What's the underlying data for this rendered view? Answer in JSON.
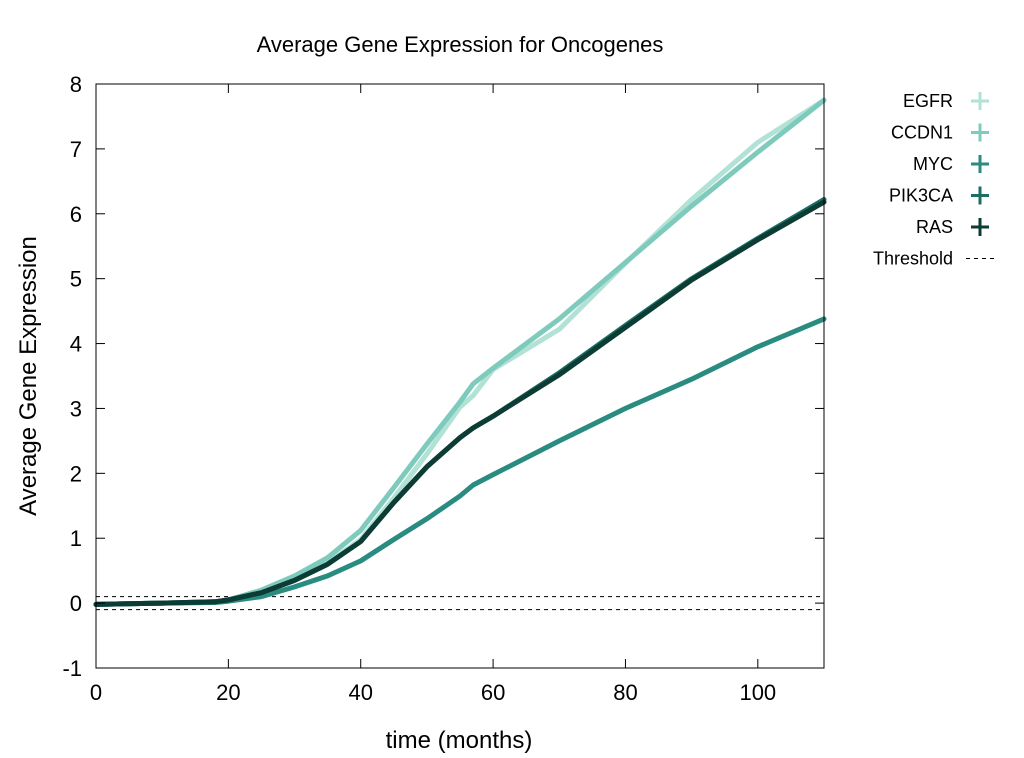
{
  "chart_data": {
    "type": "line",
    "title": "Average Gene Expression for Oncogenes",
    "xlabel": "time (months)",
    "ylabel": "Average Gene Expression",
    "xlim": [
      0,
      110
    ],
    "ylim": [
      -1,
      8
    ],
    "xticks": [
      0,
      20,
      40,
      60,
      80,
      100
    ],
    "yticks": [
      -1,
      0,
      1,
      2,
      3,
      4,
      5,
      6,
      7,
      8
    ],
    "legend_position": "outside-right",
    "series": [
      {
        "name": "EGFR",
        "color": "#b2e2d6",
        "x": [
          0,
          10,
          18,
          20,
          25,
          30,
          35,
          40,
          45,
          50,
          55,
          57,
          60,
          70,
          80,
          90,
          100,
          110
        ],
        "y": [
          -0.02,
          0.0,
          0.02,
          0.05,
          0.18,
          0.38,
          0.62,
          0.98,
          1.62,
          2.3,
          3.02,
          3.2,
          3.6,
          4.22,
          5.24,
          6.22,
          7.1,
          7.75
        ]
      },
      {
        "name": "CCDN1",
        "color": "#7ecbbd",
        "x": [
          0,
          10,
          18,
          20,
          25,
          30,
          35,
          40,
          45,
          50,
          55,
          57,
          60,
          70,
          80,
          90,
          100,
          110
        ],
        "y": [
          -0.02,
          0.0,
          0.02,
          0.05,
          0.2,
          0.42,
          0.7,
          1.12,
          1.78,
          2.45,
          3.1,
          3.38,
          3.62,
          4.38,
          5.25,
          6.12,
          6.95,
          7.75
        ]
      },
      {
        "name": "MYC",
        "color": "#2a8c80",
        "x": [
          0,
          10,
          18,
          20,
          25,
          30,
          35,
          40,
          45,
          50,
          55,
          57,
          60,
          70,
          80,
          90,
          100,
          110
        ],
        "y": [
          -0.02,
          0.0,
          0.01,
          0.03,
          0.1,
          0.25,
          0.42,
          0.65,
          0.98,
          1.3,
          1.65,
          1.82,
          1.98,
          2.5,
          3.0,
          3.45,
          3.95,
          4.38
        ]
      },
      {
        "name": "PIK3CA",
        "color": "#1a6e64",
        "x": [
          0,
          10,
          18,
          20,
          25,
          30,
          35,
          40,
          45,
          50,
          55,
          57,
          60,
          70,
          80,
          90,
          100,
          110
        ],
        "y": [
          -0.02,
          0.0,
          0.02,
          0.05,
          0.16,
          0.35,
          0.6,
          0.95,
          1.55,
          2.1,
          2.55,
          2.7,
          2.88,
          3.55,
          4.28,
          5.0,
          5.62,
          6.22
        ]
      },
      {
        "name": "RAS",
        "color": "#0d3c35",
        "x": [
          0,
          10,
          18,
          20,
          25,
          30,
          35,
          40,
          45,
          50,
          55,
          57,
          60,
          70,
          80,
          90,
          100,
          110
        ],
        "y": [
          -0.02,
          0.0,
          0.02,
          0.05,
          0.16,
          0.35,
          0.6,
          0.95,
          1.55,
          2.1,
          2.55,
          2.7,
          2.88,
          3.52,
          4.25,
          4.98,
          5.6,
          6.18
        ]
      }
    ],
    "thresholds": {
      "name": "Threshold",
      "values": [
        0.1,
        -0.1
      ],
      "style": "dashed",
      "color": "#000000"
    }
  }
}
